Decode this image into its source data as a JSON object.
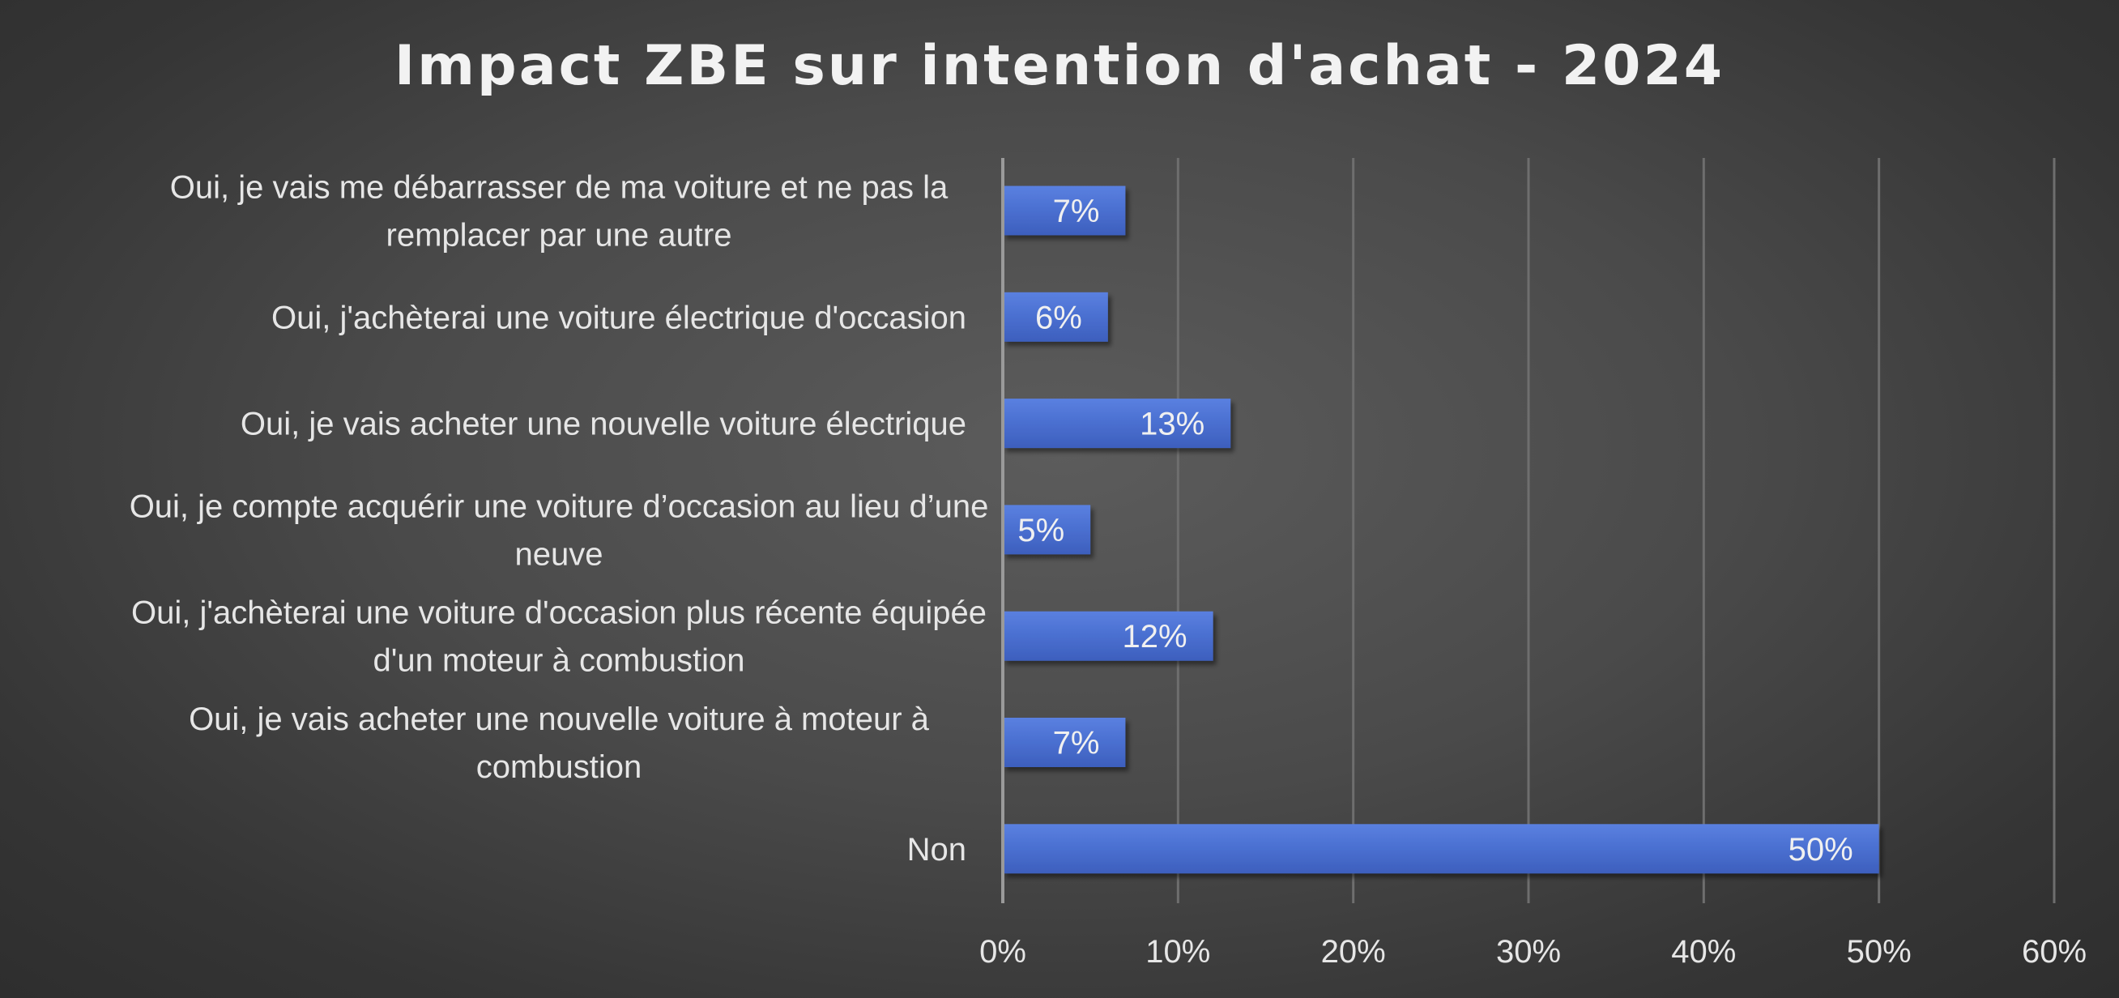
{
  "chart_data": {
    "type": "bar",
    "orientation": "horizontal",
    "title": "Impact ZBE sur intention d'achat - 2024",
    "categories": [
      [
        "Oui, je vais me débarrasser de ma voiture et ne pas la",
        "remplacer par une autre"
      ],
      [
        "Oui, j'achèterai une voiture électrique d'occasion"
      ],
      [
        "Oui, je vais acheter une nouvelle voiture électrique"
      ],
      [
        "Oui, je compte acquérir une voiture d’occasion au lieu d’une",
        "neuve"
      ],
      [
        "Oui, j'achèterai une voiture d'occasion plus récente équipée",
        "d'un moteur à combustion"
      ],
      [
        "Oui, je vais acheter une nouvelle voiture à moteur à",
        "combustion"
      ],
      [
        "Non"
      ]
    ],
    "values": [
      7,
      6,
      13,
      5,
      12,
      7,
      50
    ],
    "data_labels": [
      "7%",
      "6%",
      "13%",
      "5%",
      "12%",
      "7%",
      "50%"
    ],
    "x_ticks": [
      "0%",
      "10%",
      "20%",
      "30%",
      "40%",
      "50%",
      "60%"
    ],
    "xlim": [
      0,
      60
    ],
    "grid": true,
    "legend": "none",
    "bar_color": "#4a6fd0"
  }
}
